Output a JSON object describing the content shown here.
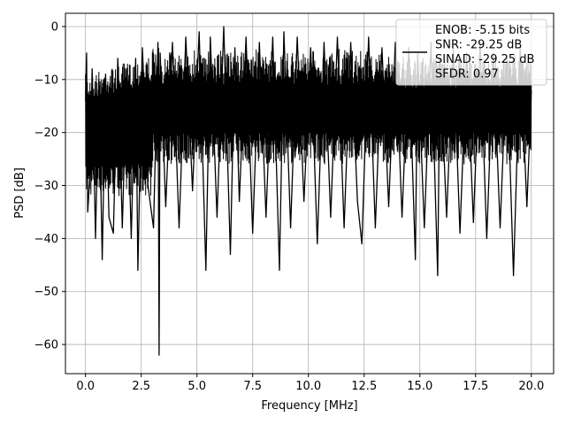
{
  "chart_data": {
    "type": "line",
    "title": "",
    "xlabel": "Frequency [MHz]",
    "ylabel": "PSD [dB]",
    "xlim": [
      -0.9,
      21.0
    ],
    "ylim": [
      -65.5,
      2.5
    ],
    "xticks": [
      0.0,
      2.5,
      5.0,
      7.5,
      10.0,
      12.5,
      15.0,
      17.5,
      20.0
    ],
    "xtick_labels": [
      "0.0",
      "2.5",
      "5.0",
      "7.5",
      "10.0",
      "12.5",
      "15.0",
      "17.5",
      "20.0"
    ],
    "yticks": [
      0,
      -10,
      -20,
      -30,
      -40,
      -50,
      -60
    ],
    "ytick_labels": [
      "0",
      "−10",
      "−20",
      "−30",
      "−40",
      "−50",
      "−60"
    ],
    "grid": true,
    "legend_position": "top-right",
    "series": [
      {
        "name": "ENOB: -5.15 bits\nSNR: -29.25 dB\nSINAD: -29.25 dB\nSFDR: 0.97",
        "color": "#000000",
        "x": [
          0.0,
          0.05,
          0.1,
          0.2,
          0.3,
          0.45,
          0.6,
          0.75,
          0.9,
          1.05,
          1.25,
          1.45,
          1.65,
          1.85,
          2.05,
          2.25,
          2.35,
          2.55,
          2.8,
          3.05,
          3.25,
          3.3,
          3.35,
          3.6,
          3.9,
          4.2,
          4.5,
          4.8,
          5.1,
          5.4,
          5.6,
          5.9,
          6.2,
          6.5,
          6.7,
          6.9,
          7.2,
          7.5,
          7.8,
          8.1,
          8.4,
          8.7,
          8.9,
          9.2,
          9.5,
          9.8,
          10.1,
          10.4,
          10.7,
          11.0,
          11.3,
          11.6,
          11.9,
          12.2,
          12.4,
          12.7,
          13.0,
          13.3,
          13.6,
          13.9,
          14.2,
          14.5,
          14.8,
          14.9,
          15.2,
          15.5,
          15.8,
          15.9,
          16.2,
          16.5,
          16.8,
          17.1,
          17.4,
          17.7,
          18.0,
          18.3,
          18.6,
          18.9,
          19.2,
          19.5,
          19.8,
          20.0
        ],
        "y": [
          -14,
          -5,
          -35,
          -28,
          -8,
          -40,
          -10,
          -44,
          -9,
          -36,
          -39,
          -6,
          -38,
          -8,
          -40,
          -6,
          -46,
          -4,
          -30,
          -38,
          -3,
          -62,
          -5,
          -34,
          -3,
          -38,
          -2,
          -31,
          -1,
          -46,
          -2,
          -36,
          0,
          -43,
          -4,
          -33,
          -2,
          -39,
          -3,
          -36,
          -2,
          -46,
          -1,
          -38,
          -2,
          -33,
          -4,
          -41,
          -3,
          -36,
          -2,
          -38,
          -3,
          -33,
          -41,
          -2,
          -38,
          -4,
          -34,
          -3,
          -36,
          -4,
          -44,
          -5,
          -38,
          -3,
          -47,
          -6,
          -36,
          -4,
          -39,
          -5,
          -37,
          -3,
          -40,
          -5,
          -38,
          -6,
          -47,
          -4,
          -34,
          -12
        ]
      }
    ]
  }
}
